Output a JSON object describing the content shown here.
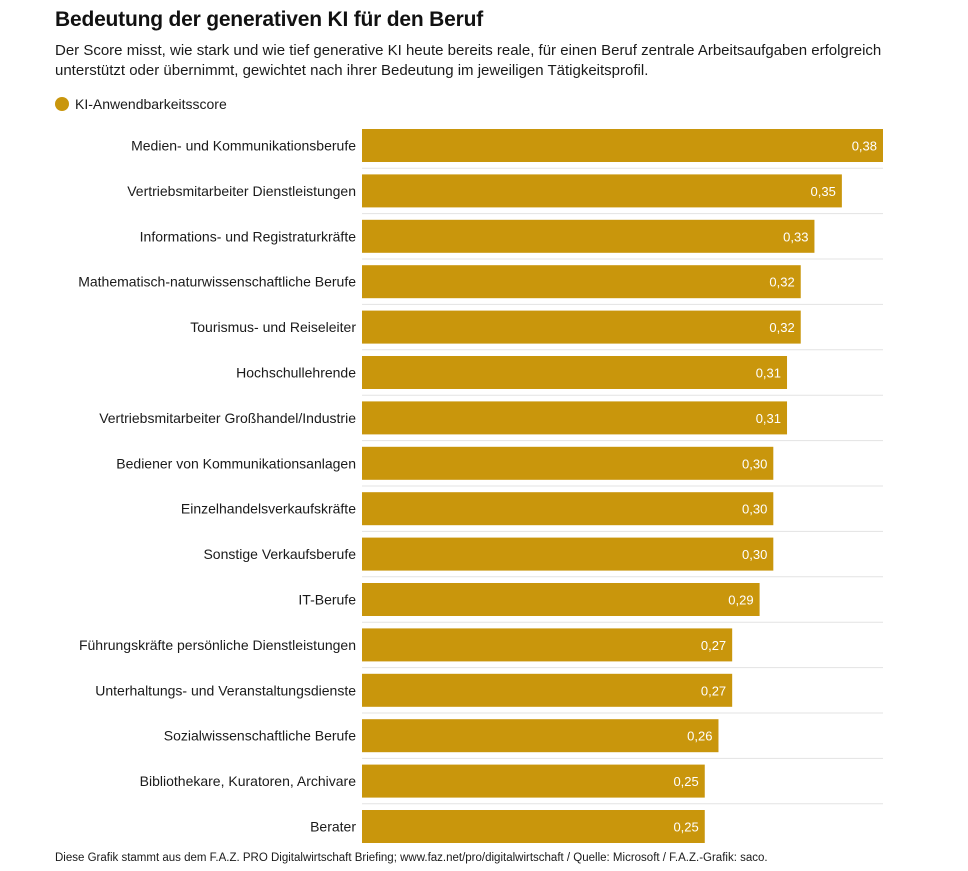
{
  "chart_data": {
    "type": "bar",
    "orientation": "horizontal",
    "title": "Bedeutung der generativen KI für den Beruf",
    "subtitle": "Der Score misst, wie stark und wie tief generative KI heute bereits reale, für einen Beruf zentrale Arbeitsaufgaben erfolgreich unterstützt oder übernimmt, gewichtet nach ihrer Bedeutung im jeweiligen Tätigkeitsprofil.",
    "legend": [
      "KI-Anwendbarkeitsscore"
    ],
    "legend_position": "top-left",
    "categories": [
      "Medien- und Kommunikationsberufe",
      "Vertriebsmitarbeiter Dienstleistungen",
      "Informations- und Registraturkräfte",
      "Mathematisch-naturwissenschaftliche Berufe",
      "Tourismus- und Reiseleiter",
      "Hochschullehrende",
      "Vertriebsmitarbeiter Großhandel/Industrie",
      "Bediener von Kommunikationsanlagen",
      "Einzelhandelsverkaufskräfte",
      "Sonstige Verkaufsberufe",
      "IT-Berufe",
      "Führungskräfte persönliche Dienstleistungen",
      "Unterhaltungs- und Veranstaltungsdienste",
      "Sozialwissenschaftliche Berufe",
      "Bibliothekare, Kuratoren, Archivare",
      "Berater"
    ],
    "values": [
      0.38,
      0.35,
      0.33,
      0.32,
      0.32,
      0.31,
      0.31,
      0.3,
      0.3,
      0.3,
      0.29,
      0.27,
      0.27,
      0.26,
      0.25,
      0.25
    ],
    "value_labels": [
      "0,38",
      "0,35",
      "0,33",
      "0,32",
      "0,32",
      "0,31",
      "0,31",
      "0,30",
      "0,30",
      "0,30",
      "0,29",
      "0,27",
      "0,27",
      "0,26",
      "0,25",
      "0,25"
    ],
    "xlim": [
      0,
      0.38
    ],
    "grid": false,
    "footer": "Diese Grafik stammt aus dem F.A.Z. PRO Digitalwirtschaft Briefing; www.faz.net/pro/digitalwirtschaft  /  Quelle: Microsoft  /  F.A.Z.-Grafik: saco."
  },
  "colors": {
    "bar": "#C9960C",
    "bar_label": "#ffffff",
    "separator": "#e3e3e3",
    "category_text": "#1a1a1a"
  }
}
